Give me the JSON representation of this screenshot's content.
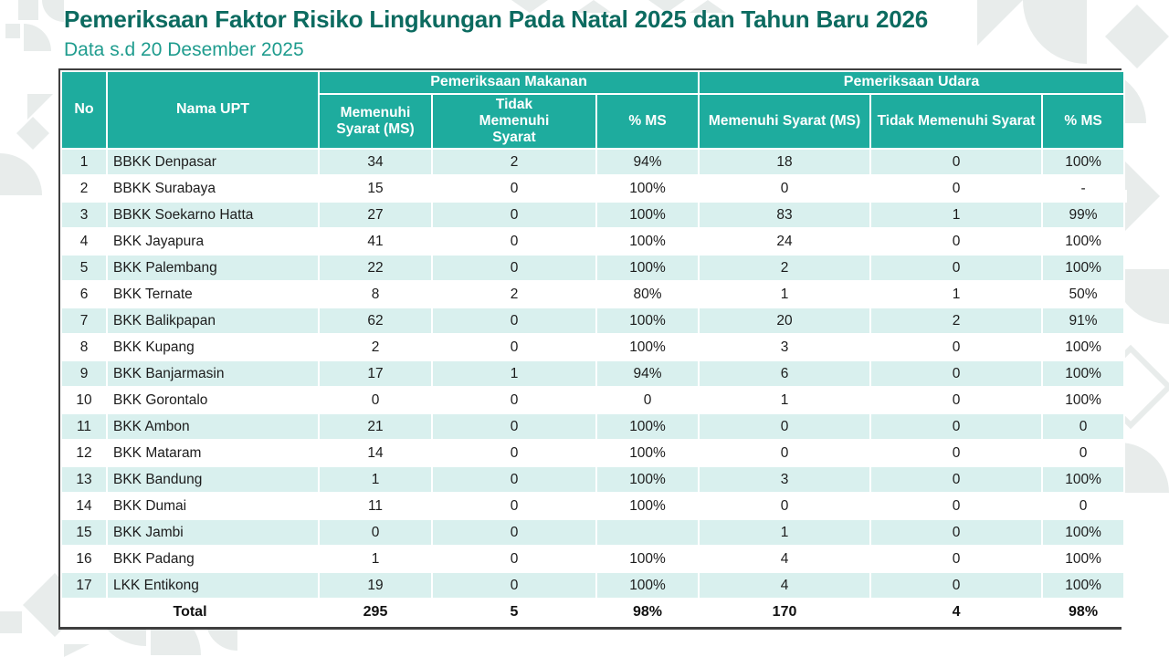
{
  "page": {
    "title": "Pemeriksaan Faktor Risiko Lingkungan Pada Natal 2025 dan Tahun Baru 2026",
    "subtitle": "Data s.d 20 Desember 2025"
  },
  "colors": {
    "header_teal": "#1EAC9E",
    "row_band_teal": "#D9F0EE",
    "title_dark_teal": "#0C6B60",
    "subtitle_teal": "#1F9C8E",
    "table_border_dark": "#3F3F3F",
    "ornament_gray": "#E8ECEB"
  },
  "table": {
    "headers": {
      "no": "No",
      "nama": "Nama UPT"
    },
    "groups": {
      "makanan": "Pemeriksaan Makanan",
      "udara": "Pemeriksaan Udara"
    },
    "subheaders": {
      "ms": "Memenuhi Syarat (MS)",
      "tms": "Tidak Memenuhi Syarat",
      "pms": "% MS"
    },
    "rows": [
      {
        "no": "1",
        "nama": "BBKK Denpasar",
        "mak_ms": "34",
        "mak_tms": "2",
        "mak_pms": "94%",
        "ud_ms": "18",
        "ud_tms": "0",
        "ud_pms": "100%"
      },
      {
        "no": "2",
        "nama": "BBKK Surabaya",
        "mak_ms": "15",
        "mak_tms": "0",
        "mak_pms": "100%",
        "ud_ms": "0",
        "ud_tms": "0",
        "ud_pms": "-"
      },
      {
        "no": "3",
        "nama": "BBKK Soekarno Hatta",
        "mak_ms": "27",
        "mak_tms": "0",
        "mak_pms": "100%",
        "ud_ms": "83",
        "ud_tms": "1",
        "ud_pms": "99%"
      },
      {
        "no": "4",
        "nama": "BKK Jayapura",
        "mak_ms": "41",
        "mak_tms": "0",
        "mak_pms": "100%",
        "ud_ms": "24",
        "ud_tms": "0",
        "ud_pms": "100%"
      },
      {
        "no": "5",
        "nama": "BKK Palembang",
        "mak_ms": "22",
        "mak_tms": "0",
        "mak_pms": "100%",
        "ud_ms": "2",
        "ud_tms": "0",
        "ud_pms": "100%"
      },
      {
        "no": "6",
        "nama": "BKK Ternate",
        "mak_ms": "8",
        "mak_tms": "2",
        "mak_pms": "80%",
        "ud_ms": "1",
        "ud_tms": "1",
        "ud_pms": "50%"
      },
      {
        "no": "7",
        "nama": "BKK Balikpapan",
        "mak_ms": "62",
        "mak_tms": "0",
        "mak_pms": "100%",
        "ud_ms": "20",
        "ud_tms": "2",
        "ud_pms": "91%"
      },
      {
        "no": "8",
        "nama": "BKK Kupang",
        "mak_ms": "2",
        "mak_tms": "0",
        "mak_pms": "100%",
        "ud_ms": "3",
        "ud_tms": "0",
        "ud_pms": "100%"
      },
      {
        "no": "9",
        "nama": "BKK Banjarmasin",
        "mak_ms": "17",
        "mak_tms": "1",
        "mak_pms": "94%",
        "ud_ms": "6",
        "ud_tms": "0",
        "ud_pms": "100%"
      },
      {
        "no": "10",
        "nama": "BKK Gorontalo",
        "mak_ms": "0",
        "mak_tms": "0",
        "mak_pms": "0",
        "ud_ms": "1",
        "ud_tms": "0",
        "ud_pms": "100%"
      },
      {
        "no": "11",
        "nama": "BKK Ambon",
        "mak_ms": "21",
        "mak_tms": "0",
        "mak_pms": "100%",
        "ud_ms": "0",
        "ud_tms": "0",
        "ud_pms": "0"
      },
      {
        "no": "12",
        "nama": "BKK Mataram",
        "mak_ms": "14",
        "mak_tms": "0",
        "mak_pms": "100%",
        "ud_ms": "0",
        "ud_tms": "0",
        "ud_pms": "0"
      },
      {
        "no": "13",
        "nama": "BKK Bandung",
        "mak_ms": "1",
        "mak_tms": "0",
        "mak_pms": "100%",
        "ud_ms": "3",
        "ud_tms": "0",
        "ud_pms": "100%"
      },
      {
        "no": "14",
        "nama": "BKK Dumai",
        "mak_ms": "11",
        "mak_tms": "0",
        "mak_pms": "100%",
        "ud_ms": "0",
        "ud_tms": "0",
        "ud_pms": "0"
      },
      {
        "no": "15",
        "nama": "BKK Jambi",
        "mak_ms": "0",
        "mak_tms": "0",
        "mak_pms": "",
        "ud_ms": "1",
        "ud_tms": "0",
        "ud_pms": "100%"
      },
      {
        "no": "16",
        "nama": "BKK Padang",
        "mak_ms": "1",
        "mak_tms": "0",
        "mak_pms": "100%",
        "ud_ms": "4",
        "ud_tms": "0",
        "ud_pms": "100%"
      },
      {
        "no": "17",
        "nama": "LKK Entikong",
        "mak_ms": "19",
        "mak_tms": "0",
        "mak_pms": "100%",
        "ud_ms": "4",
        "ud_tms": "0",
        "ud_pms": "100%"
      }
    ],
    "total": {
      "label": "Total",
      "mak_ms": "295",
      "mak_tms": "5",
      "mak_pms": "98%",
      "ud_ms": "170",
      "ud_tms": "4",
      "ud_pms": "98%"
    }
  }
}
